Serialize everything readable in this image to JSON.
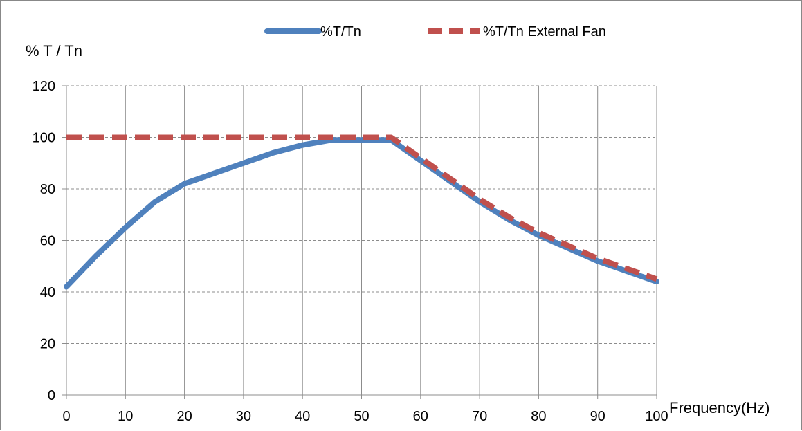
{
  "chart_data": {
    "type": "line",
    "title": "",
    "xlabel": "Frequency(Hz)",
    "ylabel": "% T / Tn",
    "xlim": [
      0,
      100
    ],
    "ylim": [
      0,
      120
    ],
    "xticks": [
      0,
      10,
      20,
      30,
      40,
      50,
      60,
      70,
      80,
      90,
      100
    ],
    "yticks": [
      0,
      20,
      40,
      60,
      80,
      100,
      120
    ],
    "grid": true,
    "legend_position": "top",
    "series": [
      {
        "name": "%T/Tn",
        "color": "#4f81bd",
        "style": "solid",
        "x": [
          0,
          5,
          10,
          15,
          20,
          25,
          30,
          35,
          40,
          45,
          50,
          55,
          60,
          65,
          70,
          75,
          80,
          85,
          90,
          95,
          100
        ],
        "y": [
          42,
          54,
          65,
          75,
          82,
          86,
          90,
          94,
          97,
          99,
          99,
          99,
          91,
          83,
          75,
          68,
          62,
          57,
          52,
          48,
          44
        ]
      },
      {
        "name": "%T/Tn External Fan",
        "color": "#c0504d",
        "style": "dashed",
        "x": [
          0,
          5,
          10,
          15,
          20,
          25,
          30,
          35,
          40,
          45,
          50,
          55,
          60,
          65,
          70,
          75,
          80,
          85,
          90,
          95,
          100
        ],
        "y": [
          100,
          100,
          100,
          100,
          100,
          100,
          100,
          100,
          100,
          100,
          100,
          100,
          92,
          84,
          76,
          69,
          63,
          58,
          53,
          49,
          45
        ]
      }
    ]
  }
}
